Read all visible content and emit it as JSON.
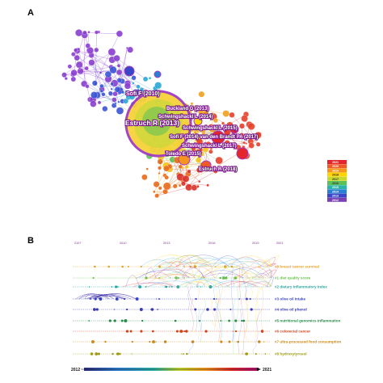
{
  "panel_a": {
    "label": "A",
    "papers": [
      "Sofi F (2010)",
      "Buckland G (2013)",
      "Schwingshackl L (2014)",
      "Estruch R (2013)",
      "Schwingshackl L (2015)",
      "Sofi F (2014) van den Brandt PA (2017)",
      "Schwingshackl L (2017)",
      "Toledo E (2015)",
      "Estruch R (2018)"
    ],
    "legend_years": [
      "2021",
      "2020",
      "2019",
      "2018",
      "2017",
      "2016",
      "2015",
      "2014",
      "2013",
      "2012"
    ],
    "legend_colors": [
      "#e3262b",
      "#f05a28",
      "#f7941d",
      "#ffd400",
      "#c8d92b",
      "#5cc15a",
      "#2bb5a8",
      "#2a7fd4",
      "#3a45c8",
      "#7b3fb4"
    ]
  },
  "panel_b": {
    "label": "B",
    "top_years": [
      "2107",
      "2010",
      "2013",
      "2016",
      "2019",
      "2021"
    ],
    "clusters": [
      {
        "label": "#0 breast cancer survival",
        "color": "#e3a22a"
      },
      {
        "label": "#1 diet quality score",
        "color": "#69c24a"
      },
      {
        "label": "#2 dietary inflammatory index",
        "color": "#2aa8a0"
      },
      {
        "label": "#3 olive oil intake",
        "color": "#3a45c8"
      },
      {
        "label": "#4 olive oil phenol",
        "color": "#3a3ab8"
      },
      {
        "label": "#5 nutritional genomics inflammation",
        "color": "#2a8a4a"
      },
      {
        "label": "#6 colorectal cancer",
        "color": "#d2461e"
      },
      {
        "label": "#7 ultra-processed food consumption",
        "color": "#c98a1a"
      },
      {
        "label": "#8 hydroxytyrosol",
        "color": "#9b9b1a"
      }
    ],
    "timeline_start": "2012",
    "timeline_end": "2021"
  }
}
